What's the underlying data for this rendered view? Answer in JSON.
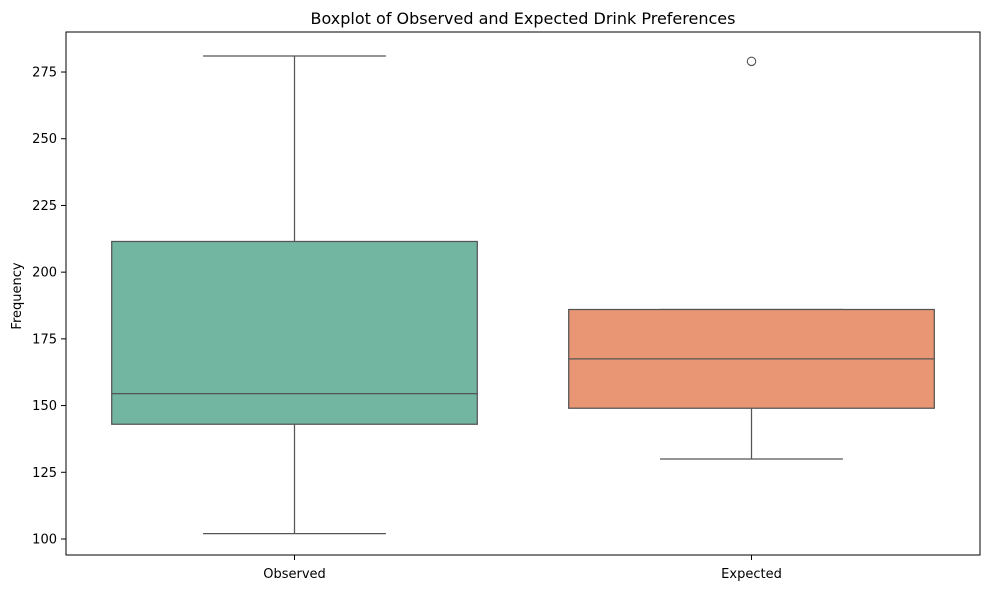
{
  "chart_data": {
    "type": "boxplot",
    "title": "Boxplot of Observed and Expected Drink Preferences",
    "xlabel": "",
    "ylabel": "Frequency",
    "ylim": [
      94,
      290
    ],
    "yticks": [
      100,
      125,
      150,
      175,
      200,
      225,
      250,
      275
    ],
    "grid": false,
    "categories": [
      "Observed",
      "Expected"
    ],
    "boxes": [
      {
        "category": "Observed",
        "whisker_low": 102,
        "q1": 143,
        "median": 154.5,
        "q3": 211.5,
        "whisker_high": 281,
        "outliers": [],
        "color": "#72b5a1"
      },
      {
        "category": "Expected",
        "whisker_low": 130,
        "q1": 149,
        "median": 167.5,
        "q3": 186,
        "whisker_high": 186,
        "outliers": [
          279
        ],
        "color": "#e99675"
      }
    ],
    "line_color": "#555555"
  }
}
